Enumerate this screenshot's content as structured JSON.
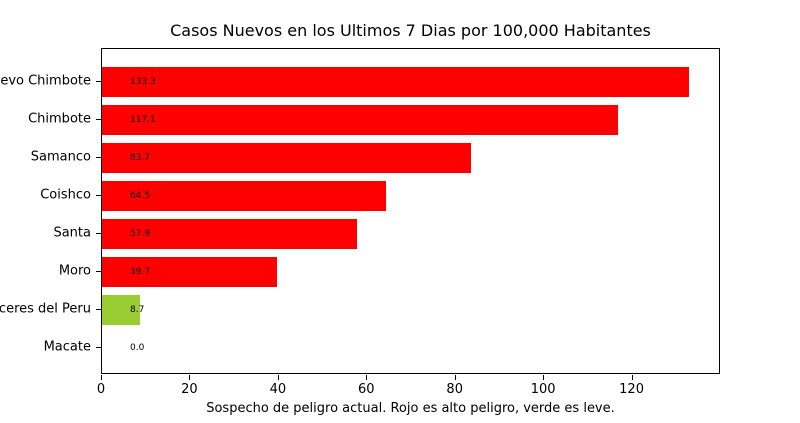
{
  "chart_data": {
    "type": "bar",
    "orientation": "horizontal",
    "title": "Casos Nuevos en los Ultimos 7 Dias por 100,000 Habitantes",
    "xlabel": "Sospecho de peligro actual. Rojo es alto peligro, verde es leve.",
    "categories": [
      "Nuevo Chimbote",
      "Chimbote",
      "Samanco",
      "Coishco",
      "Santa",
      "Moro",
      "Caceres del Peru",
      "Macate"
    ],
    "values": [
      133.3,
      117.1,
      83.7,
      64.5,
      57.9,
      39.7,
      8.7,
      0.0
    ],
    "value_labels": [
      "133.3",
      "117.1",
      "83.7",
      "64.5",
      "57.9",
      "39.7",
      "8.7",
      "0.0"
    ],
    "bar_colors": [
      "#ff0000",
      "#ff0000",
      "#ff0000",
      "#ff0000",
      "#ff0000",
      "#ff0000",
      "#9acd32",
      "#ff0000"
    ],
    "x_ticks": [
      0,
      20,
      40,
      60,
      80,
      100,
      120
    ],
    "xlim": [
      0,
      140
    ],
    "grid": false,
    "legend": "none",
    "colors": {
      "high_danger": "#ff0000",
      "low_danger": "#9acd32",
      "text": "#000000",
      "background": "#ffffff"
    }
  }
}
